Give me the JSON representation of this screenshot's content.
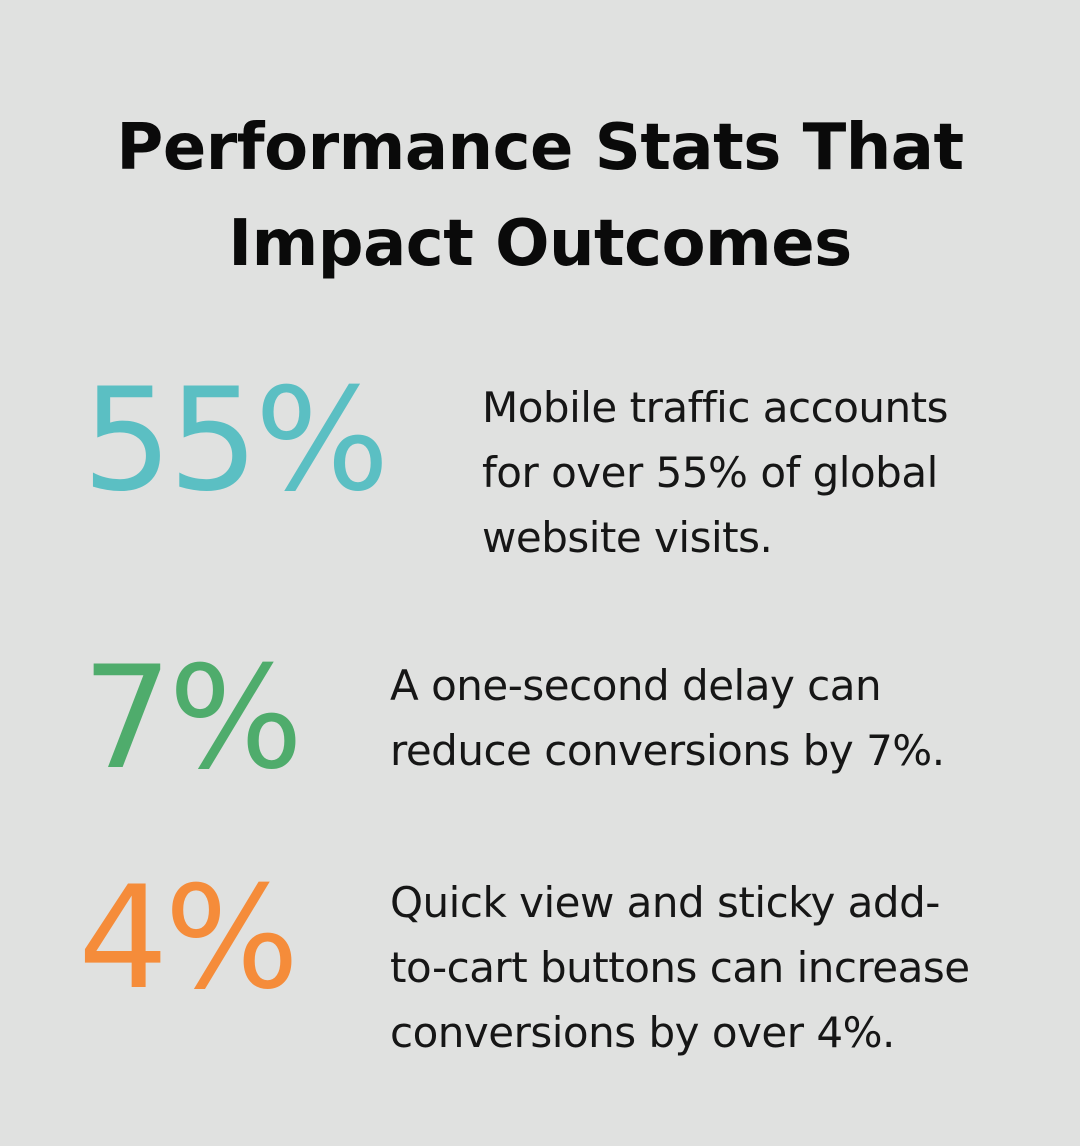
{
  "title": "Performance Stats That\nImpact Outcomes",
  "stats": [
    {
      "value": "55%",
      "color": "#5bbfc3",
      "text": "Mobile traffic accounts\nfor over 55% of global\nwebsite visits."
    },
    {
      "value": "7%",
      "color": "#4fac6c",
      "text": "A one-second delay can\nreduce conversions by 7%."
    },
    {
      "value": "4%",
      "color": "#f58c3a",
      "text": "Quick view and sticky add-\nto-cart buttons can increase\nconversions by over 4%."
    }
  ]
}
